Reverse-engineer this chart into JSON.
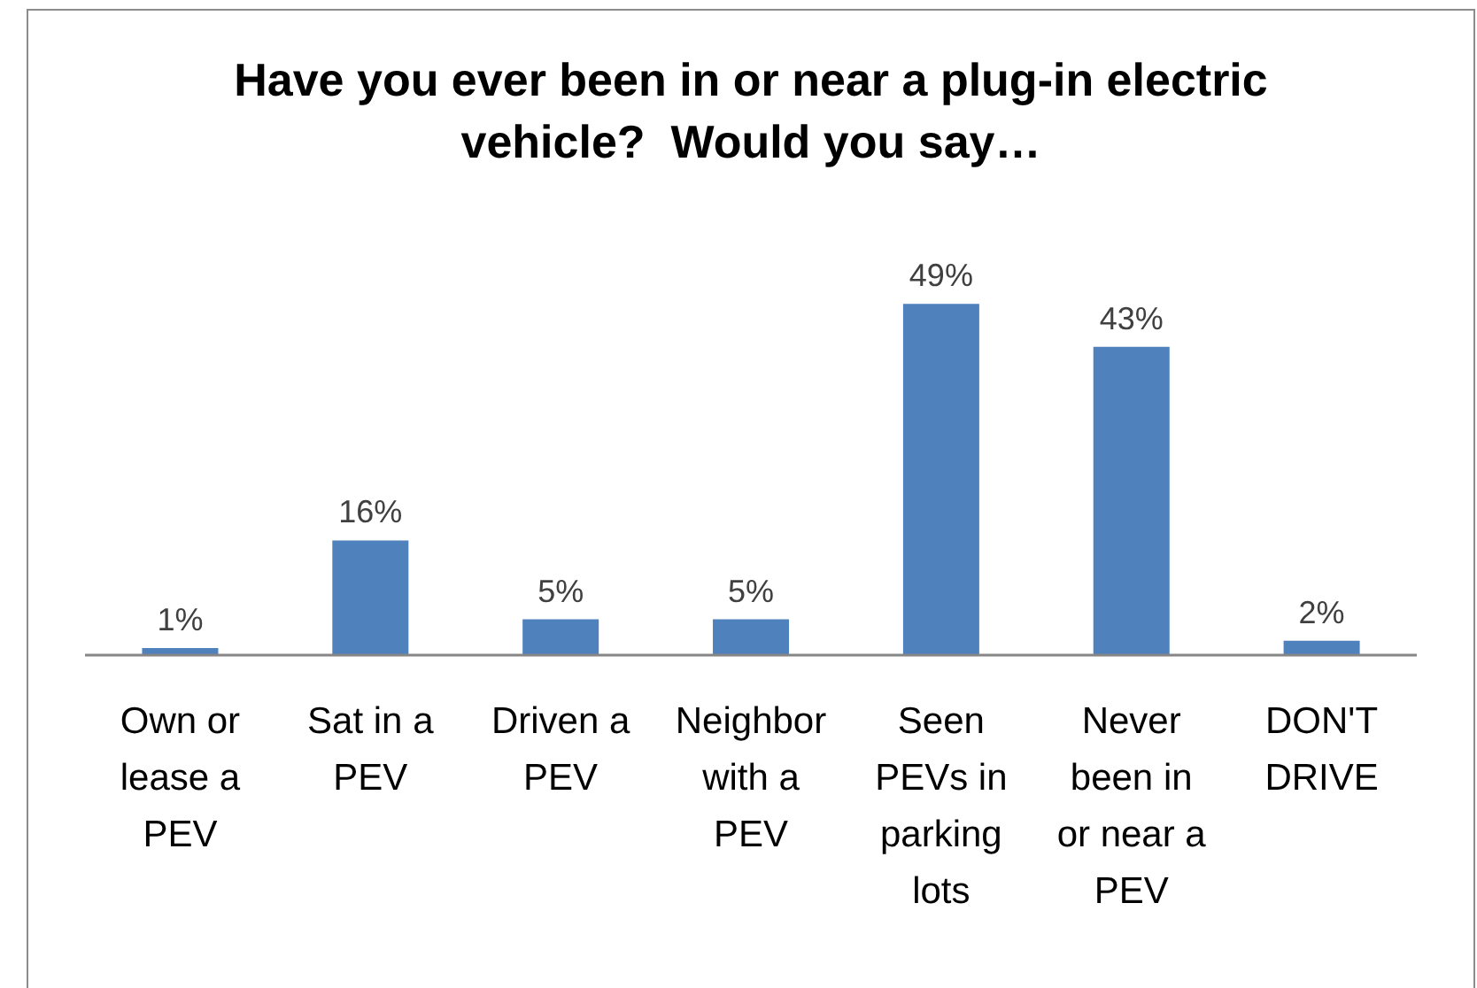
{
  "chart_data": {
    "type": "bar",
    "title": "Have you ever been in or near a plug-in electric vehicle?  Would you say…",
    "categories": [
      "Own or lease a PEV",
      "Sat in a PEV",
      "Driven a PEV",
      "Neighbor with a PEV",
      "Seen PEVs in parking lots",
      "Never been in or near a PEV",
      "DON'T DRIVE"
    ],
    "values": [
      1,
      16,
      5,
      5,
      49,
      43,
      2
    ],
    "value_labels": [
      "1%",
      "16%",
      "5%",
      "5%",
      "49%",
      "43%",
      "2%"
    ],
    "color": "#4f81bd",
    "tick_labels": "x"
  }
}
